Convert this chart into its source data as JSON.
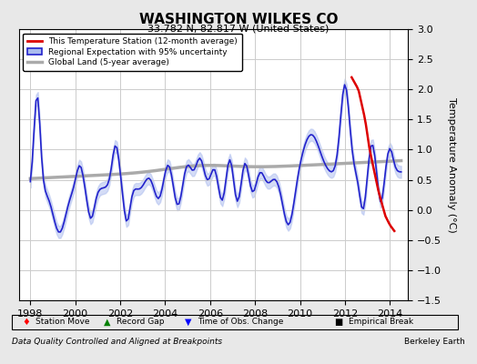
{
  "title": "WASHINGTON WILKES CO",
  "subtitle": "33.782 N, 82.817 W (United States)",
  "xlabel_footer": "Data Quality Controlled and Aligned at Breakpoints",
  "xlabel_footer_right": "Berkeley Earth",
  "ylabel": "Temperature Anomaly (°C)",
  "xlim": [
    1997.5,
    2014.8
  ],
  "ylim": [
    -1.5,
    3.0
  ],
  "yticks": [
    -1.5,
    -1.0,
    -0.5,
    0.0,
    0.5,
    1.0,
    1.5,
    2.0,
    2.5,
    3.0
  ],
  "xticks": [
    1998,
    2000,
    2002,
    2004,
    2006,
    2008,
    2010,
    2012,
    2014
  ],
  "bg_color": "#e8e8e8",
  "plot_bg_color": "#ffffff",
  "grid_color": "#cccccc",
  "regional_color": "#2222cc",
  "regional_uncertainty_color": "#aabbee",
  "station_color": "#dd0000",
  "global_color": "#aaaaaa",
  "legend_labels": [
    "This Temperature Station (12-month average)",
    "Regional Expectation with 95% uncertainty",
    "Global Land (5-year average)"
  ]
}
